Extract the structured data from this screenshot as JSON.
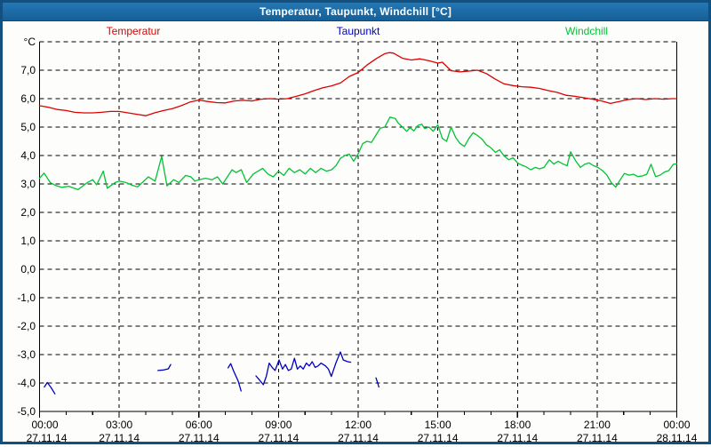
{
  "window": {
    "title": "Temperatur, Taupunkt, Windchill [°C]"
  },
  "colors": {
    "frame_border": "#12507f",
    "titlebar": "#1b6ca6",
    "background": "#fdfdfb",
    "grid": "#000000",
    "axis": "#000000",
    "temperatur": "#dd0000",
    "taupunkt": "#0000c0",
    "windchill": "#00c334"
  },
  "chart_data": {
    "type": "line",
    "title": "Temperatur, Taupunkt, Windchill [°C]",
    "legend_position": "top",
    "grid": "dashed",
    "y_axis": {
      "unit_label": "°C",
      "min": -5,
      "max": 8,
      "step": 1,
      "tick_labels": [
        "7,0",
        "6,0",
        "5,0",
        "4,0",
        "3,0",
        "2,0",
        "1,0",
        "0,0",
        "-1,0",
        "-2,0",
        "-3,0",
        "-4,0",
        "-5,0"
      ],
      "tick_values": [
        7,
        6,
        5,
        4,
        3,
        2,
        1,
        0,
        -1,
        -2,
        -3,
        -4,
        -5
      ]
    },
    "x_axis": {
      "range_hours": [
        0,
        24
      ],
      "major_step_hours": 3,
      "minor_step_hours": 1,
      "ticks": [
        {
          "time": "00:00",
          "date": "27.11.14"
        },
        {
          "time": "03:00",
          "date": "27.11.14"
        },
        {
          "time": "06:00",
          "date": "27.11.14"
        },
        {
          "time": "09:00",
          "date": "27.11.14"
        },
        {
          "time": "12:00",
          "date": "27.11.14"
        },
        {
          "time": "15:00",
          "date": "27.11.14"
        },
        {
          "time": "18:00",
          "date": "27.11.14"
        },
        {
          "time": "21:00",
          "date": "27.11.14"
        },
        {
          "time": "00:00",
          "date": "28.11.14"
        }
      ]
    },
    "series": [
      {
        "name": "Temperatur",
        "color": "#dd0000",
        "points": [
          [
            0,
            5.75
          ],
          [
            0.33,
            5.7
          ],
          [
            0.67,
            5.62
          ],
          [
            1,
            5.58
          ],
          [
            1.33,
            5.52
          ],
          [
            1.67,
            5.5
          ],
          [
            2,
            5.5
          ],
          [
            2.33,
            5.52
          ],
          [
            2.67,
            5.55
          ],
          [
            3,
            5.55
          ],
          [
            3.33,
            5.5
          ],
          [
            3.67,
            5.45
          ],
          [
            4,
            5.4
          ],
          [
            4.33,
            5.5
          ],
          [
            4.67,
            5.58
          ],
          [
            5,
            5.65
          ],
          [
            5.33,
            5.75
          ],
          [
            5.67,
            5.88
          ],
          [
            6,
            5.95
          ],
          [
            6.33,
            5.9
          ],
          [
            6.67,
            5.86
          ],
          [
            7,
            5.85
          ],
          [
            7.33,
            5.92
          ],
          [
            7.67,
            5.94
          ],
          [
            8,
            5.92
          ],
          [
            8.33,
            5.98
          ],
          [
            8.67,
            6.0
          ],
          [
            9,
            5.98
          ],
          [
            9.33,
            6.0
          ],
          [
            9.67,
            6.08
          ],
          [
            10,
            6.17
          ],
          [
            10.33,
            6.28
          ],
          [
            10.67,
            6.38
          ],
          [
            11,
            6.45
          ],
          [
            11.33,
            6.55
          ],
          [
            11.67,
            6.78
          ],
          [
            12,
            6.92
          ],
          [
            12.33,
            7.18
          ],
          [
            12.67,
            7.4
          ],
          [
            13,
            7.58
          ],
          [
            13.17,
            7.62
          ],
          [
            13.33,
            7.6
          ],
          [
            13.67,
            7.42
          ],
          [
            14,
            7.36
          ],
          [
            14.33,
            7.4
          ],
          [
            14.67,
            7.33
          ],
          [
            15,
            7.25
          ],
          [
            15.17,
            7.28
          ],
          [
            15.5,
            6.98
          ],
          [
            15.83,
            6.94
          ],
          [
            16.17,
            6.97
          ],
          [
            16.5,
            7.0
          ],
          [
            16.83,
            6.88
          ],
          [
            17.17,
            6.68
          ],
          [
            17.5,
            6.52
          ],
          [
            17.83,
            6.46
          ],
          [
            18.17,
            6.42
          ],
          [
            18.5,
            6.4
          ],
          [
            18.83,
            6.36
          ],
          [
            19.17,
            6.28
          ],
          [
            19.5,
            6.22
          ],
          [
            19.83,
            6.12
          ],
          [
            20.17,
            6.08
          ],
          [
            20.5,
            6.03
          ],
          [
            20.83,
            5.98
          ],
          [
            21.17,
            5.92
          ],
          [
            21.5,
            5.83
          ],
          [
            21.83,
            5.9
          ],
          [
            22.17,
            5.97
          ],
          [
            22.5,
            6.0
          ],
          [
            22.83,
            5.97
          ],
          [
            23.17,
            6.0
          ],
          [
            23.5,
            5.98
          ],
          [
            23.83,
            6.0
          ],
          [
            24,
            6.0
          ]
        ]
      },
      {
        "name": "Taupunkt",
        "color": "#0000c0",
        "segments": [
          [
            [
              0.18,
              -4.14
            ],
            [
              0.29,
              -3.98
            ],
            [
              0.44,
              -4.17
            ],
            [
              0.58,
              -4.38
            ]
          ],
          [
            [
              4.46,
              -3.56
            ],
            [
              4.68,
              -3.54
            ],
            [
              4.85,
              -3.5
            ],
            [
              4.94,
              -3.35
            ]
          ],
          [
            [
              7.1,
              -3.47
            ],
            [
              7.2,
              -3.32
            ],
            [
              7.3,
              -3.56
            ],
            [
              7.48,
              -3.93
            ],
            [
              7.59,
              -4.28
            ]
          ],
          [
            [
              8.15,
              -3.75
            ],
            [
              8.26,
              -3.87
            ],
            [
              8.43,
              -4.06
            ],
            [
              8.54,
              -3.77
            ],
            [
              8.65,
              -3.3
            ],
            [
              8.76,
              -3.45
            ],
            [
              8.87,
              -3.56
            ],
            [
              9.02,
              -3.19
            ],
            [
              9.15,
              -3.51
            ],
            [
              9.26,
              -3.35
            ],
            [
              9.37,
              -3.56
            ],
            [
              9.48,
              -3.51
            ],
            [
              9.6,
              -3.13
            ],
            [
              9.71,
              -3.51
            ],
            [
              9.82,
              -3.4
            ],
            [
              9.93,
              -3.51
            ],
            [
              10.05,
              -3.3
            ],
            [
              10.16,
              -3.4
            ],
            [
              10.27,
              -3.25
            ],
            [
              10.38,
              -3.45
            ],
            [
              10.49,
              -3.4
            ],
            [
              10.6,
              -3.3
            ],
            [
              10.77,
              -3.4
            ],
            [
              10.88,
              -3.51
            ],
            [
              10.99,
              -3.77
            ],
            [
              11.16,
              -3.3
            ],
            [
              11.33,
              -2.91
            ],
            [
              11.44,
              -3.19
            ],
            [
              11.61,
              -3.25
            ],
            [
              11.72,
              -3.27
            ]
          ],
          [
            [
              12.67,
              -3.82
            ],
            [
              12.73,
              -3.98
            ],
            [
              12.78,
              -4.14
            ]
          ]
        ]
      },
      {
        "name": "Windchill",
        "color": "#00c334",
        "points": [
          [
            0,
            3.2
          ],
          [
            0.17,
            3.38
          ],
          [
            0.4,
            3.05
          ],
          [
            0.6,
            2.95
          ],
          [
            0.83,
            2.88
          ],
          [
            1.1,
            2.92
          ],
          [
            1.45,
            2.8
          ],
          [
            1.8,
            3.05
          ],
          [
            2,
            3.15
          ],
          [
            2.15,
            2.97
          ],
          [
            2.4,
            3.45
          ],
          [
            2.55,
            2.85
          ],
          [
            2.85,
            3.05
          ],
          [
            3,
            3.1
          ],
          [
            3.25,
            3.05
          ],
          [
            3.5,
            2.95
          ],
          [
            3.7,
            2.9
          ],
          [
            4.1,
            3.25
          ],
          [
            4.35,
            3.1
          ],
          [
            4.6,
            3.97
          ],
          [
            4.8,
            2.93
          ],
          [
            5.05,
            3.15
          ],
          [
            5.25,
            3.05
          ],
          [
            5.5,
            3.3
          ],
          [
            5.7,
            3.25
          ],
          [
            5.85,
            3.1
          ],
          [
            6,
            3.15
          ],
          [
            6.25,
            3.2
          ],
          [
            6.5,
            3.15
          ],
          [
            6.7,
            3.25
          ],
          [
            6.9,
            3.0
          ],
          [
            7.25,
            3.5
          ],
          [
            7.4,
            3.4
          ],
          [
            7.6,
            3.5
          ],
          [
            7.8,
            3.05
          ],
          [
            8.05,
            3.35
          ],
          [
            8.4,
            3.55
          ],
          [
            8.6,
            3.35
          ],
          [
            8.8,
            3.25
          ],
          [
            9,
            3.45
          ],
          [
            9.2,
            3.3
          ],
          [
            9.4,
            3.55
          ],
          [
            9.6,
            3.4
          ],
          [
            9.8,
            3.5
          ],
          [
            10,
            3.35
          ],
          [
            10.2,
            3.55
          ],
          [
            10.4,
            3.4
          ],
          [
            10.6,
            3.55
          ],
          [
            10.8,
            3.45
          ],
          [
            11,
            3.5
          ],
          [
            11.17,
            3.65
          ],
          [
            11.33,
            3.9
          ],
          [
            11.5,
            4.0
          ],
          [
            11.67,
            4.05
          ],
          [
            11.83,
            3.8
          ],
          [
            12,
            4.06
          ],
          [
            12.17,
            4.42
          ],
          [
            12.33,
            4.5
          ],
          [
            12.5,
            4.46
          ],
          [
            12.67,
            4.72
          ],
          [
            12.83,
            4.96
          ],
          [
            13,
            5.0
          ],
          [
            13.2,
            5.35
          ],
          [
            13.4,
            5.3
          ],
          [
            13.5,
            5.15
          ],
          [
            13.67,
            5.0
          ],
          [
            13.83,
            4.85
          ],
          [
            13.95,
            4.98
          ],
          [
            14.1,
            4.87
          ],
          [
            14.25,
            5.06
          ],
          [
            14.4,
            5.1
          ],
          [
            14.5,
            4.95
          ],
          [
            14.67,
            5.0
          ],
          [
            14.83,
            4.85
          ],
          [
            15,
            5.08
          ],
          [
            15.17,
            4.6
          ],
          [
            15.33,
            4.5
          ],
          [
            15.5,
            5.0
          ],
          [
            15.67,
            4.64
          ],
          [
            15.83,
            4.43
          ],
          [
            16,
            4.32
          ],
          [
            16.17,
            4.6
          ],
          [
            16.33,
            4.8
          ],
          [
            16.5,
            4.7
          ],
          [
            16.67,
            4.57
          ],
          [
            16.83,
            4.38
          ],
          [
            17,
            4.27
          ],
          [
            17.17,
            4.11
          ],
          [
            17.33,
            4.2
          ],
          [
            17.5,
            3.98
          ],
          [
            17.67,
            3.85
          ],
          [
            17.83,
            3.92
          ],
          [
            18,
            3.74
          ],
          [
            18.17,
            3.66
          ],
          [
            18.33,
            3.6
          ],
          [
            18.5,
            3.5
          ],
          [
            18.67,
            3.58
          ],
          [
            18.83,
            3.53
          ],
          [
            19,
            3.58
          ],
          [
            19.2,
            3.85
          ],
          [
            19.37,
            3.7
          ],
          [
            19.53,
            3.8
          ],
          [
            19.7,
            3.71
          ],
          [
            19.87,
            3.64
          ],
          [
            20,
            4.13
          ],
          [
            20.2,
            3.8
          ],
          [
            20.37,
            3.58
          ],
          [
            20.53,
            3.69
          ],
          [
            20.7,
            3.74
          ],
          [
            20.87,
            3.64
          ],
          [
            21.03,
            3.58
          ],
          [
            21.2,
            3.47
          ],
          [
            21.37,
            3.31
          ],
          [
            21.53,
            3.05
          ],
          [
            21.7,
            2.89
          ],
          [
            21.87,
            3.15
          ],
          [
            22.03,
            3.37
          ],
          [
            22.2,
            3.31
          ],
          [
            22.37,
            3.34
          ],
          [
            22.53,
            3.26
          ],
          [
            22.7,
            3.28
          ],
          [
            22.87,
            3.34
          ],
          [
            23.03,
            3.69
          ],
          [
            23.2,
            3.26
          ],
          [
            23.37,
            3.31
          ],
          [
            23.53,
            3.42
          ],
          [
            23.7,
            3.47
          ],
          [
            23.87,
            3.69
          ],
          [
            24,
            3.71
          ]
        ]
      }
    ]
  }
}
